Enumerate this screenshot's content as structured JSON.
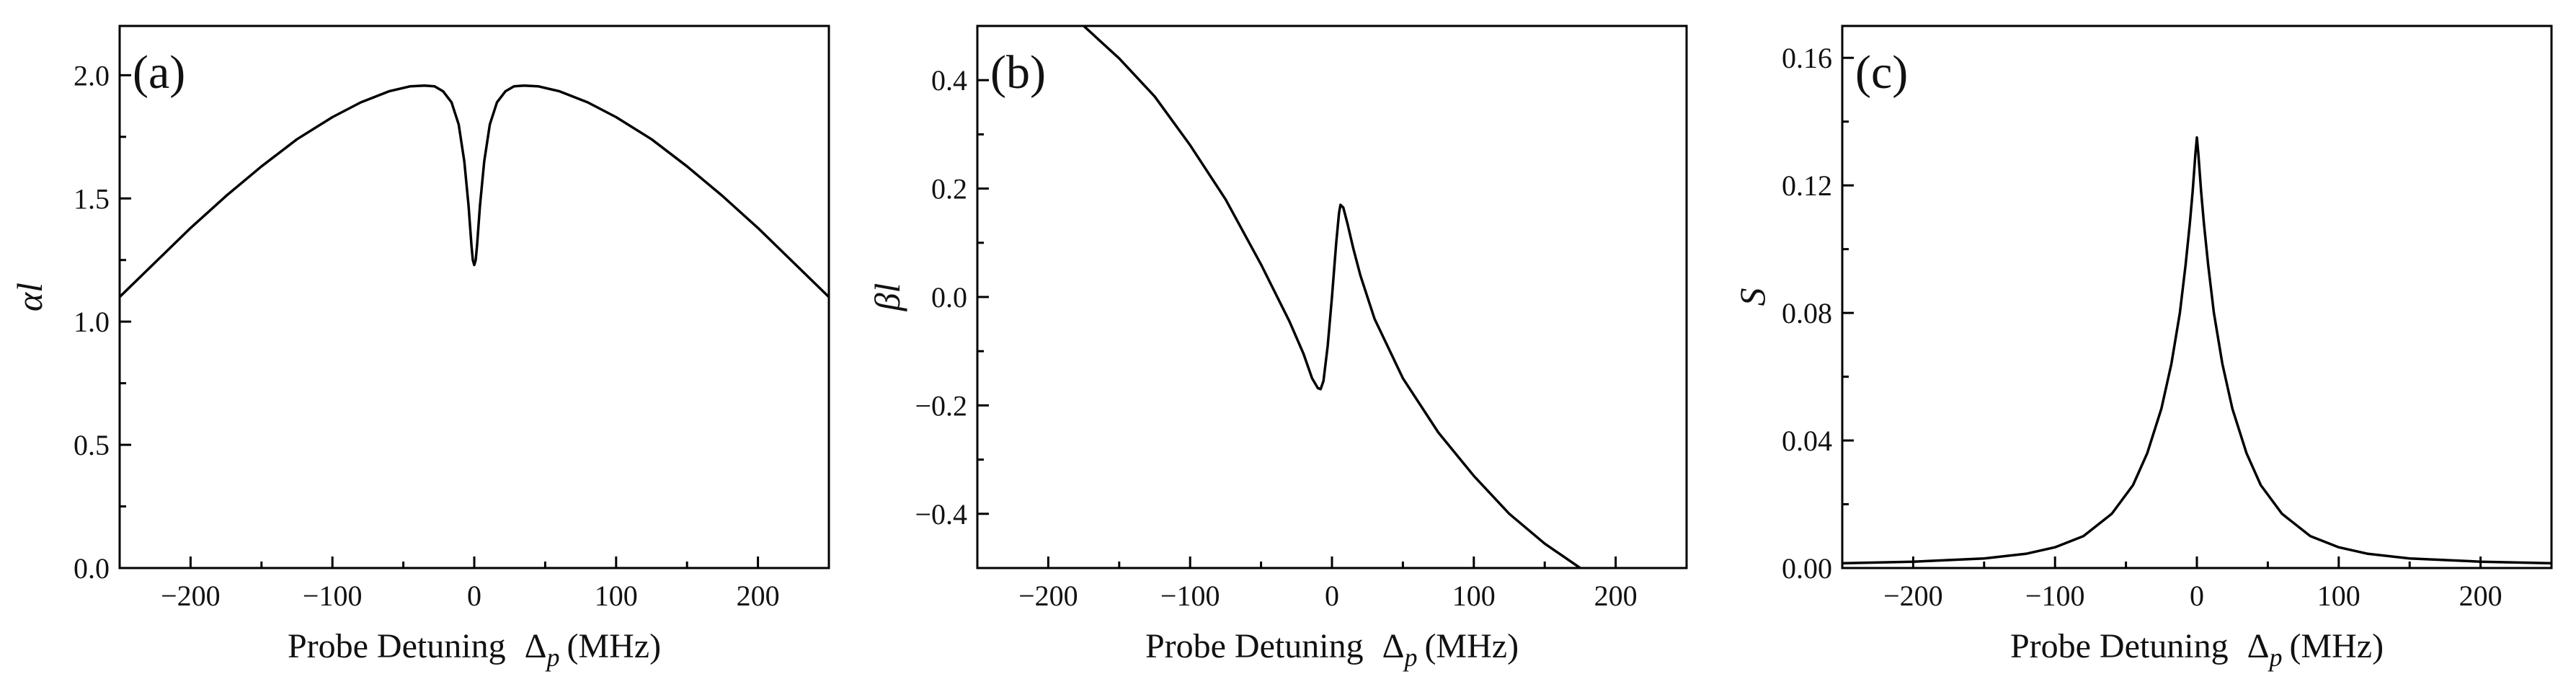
{
  "chart_data": [
    {
      "type": "line",
      "panel_label": "(a)",
      "title": "",
      "xlabel": "Probe Detuning",
      "xlabel_symbol": "Δ",
      "xlabel_subscript": "p",
      "xlabel_units": "(MHz)",
      "ylabel": "αl",
      "xlim": [
        -250,
        250
      ],
      "ylim": [
        0.0,
        2.2
      ],
      "xticks": [
        -200,
        -100,
        0,
        100,
        200
      ],
      "xtick_labels": [
        "−200",
        "−100",
        "0",
        "100",
        "200"
      ],
      "yticks": [
        0.0,
        0.5,
        1.0,
        1.5,
        2.0
      ],
      "ytick_labels": [
        "0.0",
        "0.5",
        "1.0",
        "1.5",
        "2.0"
      ],
      "series": [
        {
          "name": "αl",
          "x": [
            -250,
            -225,
            -200,
            -175,
            -150,
            -125,
            -100,
            -80,
            -60,
            -45,
            -35,
            -28,
            -22,
            -16,
            -11,
            -7,
            -4,
            -2,
            -1,
            0,
            1,
            2,
            4,
            7,
            11,
            16,
            22,
            28,
            35,
            45,
            60,
            80,
            100,
            125,
            150,
            175,
            200,
            225,
            250
          ],
          "values": [
            1.1,
            1.24,
            1.38,
            1.51,
            1.63,
            1.74,
            1.83,
            1.89,
            1.935,
            1.955,
            1.958,
            1.955,
            1.935,
            1.89,
            1.8,
            1.65,
            1.47,
            1.31,
            1.25,
            1.23,
            1.25,
            1.31,
            1.47,
            1.65,
            1.8,
            1.89,
            1.935,
            1.955,
            1.958,
            1.955,
            1.935,
            1.89,
            1.83,
            1.74,
            1.63,
            1.51,
            1.38,
            1.24,
            1.1
          ]
        }
      ]
    },
    {
      "type": "line",
      "panel_label": "(b)",
      "title": "",
      "xlabel": "Probe Detuning",
      "xlabel_symbol": "Δ",
      "xlabel_subscript": "p",
      "xlabel_units": "(MHz)",
      "ylabel": "βl",
      "xlim": [
        -250,
        250
      ],
      "ylim": [
        -0.5,
        0.5
      ],
      "xticks": [
        -200,
        -100,
        0,
        100,
        200
      ],
      "xtick_labels": [
        "−200",
        "−100",
        "0",
        "100",
        "200"
      ],
      "yticks": [
        -0.4,
        -0.2,
        0.0,
        0.2,
        0.4
      ],
      "ytick_labels": [
        "−0.4",
        "−0.2",
        "0.0",
        "0.2",
        "0.4"
      ],
      "series": [
        {
          "name": "βl",
          "x": [
            -175,
            -150,
            -125,
            -100,
            -75,
            -50,
            -30,
            -20,
            -14,
            -10,
            -8,
            -6,
            -3,
            0,
            3,
            5,
            6,
            8,
            11,
            15,
            20,
            30,
            50,
            75,
            100,
            125,
            150,
            175
          ],
          "values": [
            0.5,
            0.44,
            0.37,
            0.28,
            0.18,
            0.06,
            -0.045,
            -0.105,
            -0.15,
            -0.168,
            -0.17,
            -0.155,
            -0.09,
            0.0,
            0.1,
            0.155,
            0.17,
            0.165,
            0.135,
            0.09,
            0.04,
            -0.04,
            -0.15,
            -0.25,
            -0.33,
            -0.4,
            -0.455,
            -0.5
          ]
        }
      ]
    },
    {
      "type": "line",
      "panel_label": "(c)",
      "title": "",
      "xlabel": "Probe Detuning",
      "xlabel_symbol": "Δ",
      "xlabel_subscript": "p",
      "xlabel_units": "(MHz)",
      "ylabel": "S",
      "xlim": [
        -250,
        250
      ],
      "ylim": [
        0.0,
        0.17
      ],
      "xticks": [
        -200,
        -100,
        0,
        100,
        200
      ],
      "xtick_labels": [
        "−200",
        "−100",
        "0",
        "100",
        "200"
      ],
      "yticks": [
        0.0,
        0.04,
        0.08,
        0.12,
        0.16
      ],
      "ytick_labels": [
        "0.00",
        "0.04",
        "0.08",
        "0.12",
        "0.16"
      ],
      "series": [
        {
          "name": "S",
          "x": [
            -250,
            -200,
            -150,
            -120,
            -100,
            -80,
            -60,
            -45,
            -35,
            -25,
            -18,
            -12,
            -8,
            -5,
            -3,
            -1,
            0,
            1,
            3,
            5,
            8,
            12,
            18,
            25,
            35,
            45,
            60,
            80,
            100,
            120,
            150,
            200,
            250
          ],
          "values": [
            0.0015,
            0.002,
            0.003,
            0.0045,
            0.0065,
            0.01,
            0.017,
            0.026,
            0.036,
            0.05,
            0.064,
            0.08,
            0.095,
            0.108,
            0.118,
            0.13,
            0.135,
            0.13,
            0.118,
            0.108,
            0.095,
            0.08,
            0.064,
            0.05,
            0.036,
            0.026,
            0.017,
            0.01,
            0.0065,
            0.0045,
            0.003,
            0.002,
            0.0015
          ]
        }
      ]
    }
  ]
}
